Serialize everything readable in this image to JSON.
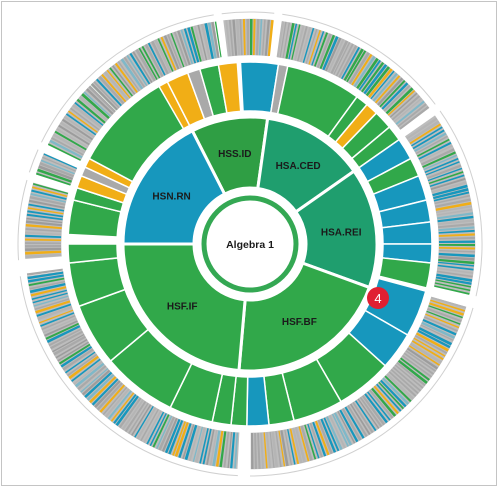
{
  "center": {
    "label": "Algebra 1"
  },
  "badge": {
    "value": "4"
  },
  "colors": {
    "green": "#31a84a",
    "dark_green": "#2f9e44",
    "teal": "#1f9e6e",
    "blue": "#1797bd",
    "orange": "#f1ae16",
    "gray": "#a9a9a9",
    "badge_red": "#e02032"
  },
  "domains": [
    {
      "label": "HSS.ID",
      "color": "dark_green",
      "start": -27,
      "end": 8
    },
    {
      "label": "HSA.CED",
      "color": "teal",
      "start": 8,
      "end": 55
    },
    {
      "label": "HSA.REI",
      "color": "teal",
      "start": 55,
      "end": 110
    },
    {
      "label": "HSF.BF",
      "color": "green",
      "start": 110,
      "end": 185
    },
    {
      "label": "HSF.IF",
      "color": "green",
      "start": 185,
      "end": 270
    },
    {
      "label": "HSN.RN",
      "color": "blue",
      "start": 270,
      "end": 333
    }
  ]
}
